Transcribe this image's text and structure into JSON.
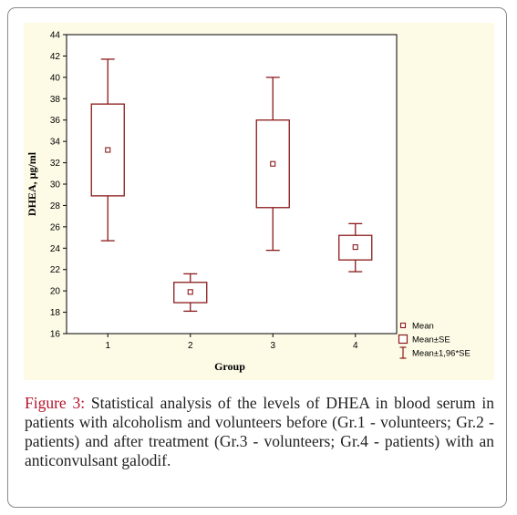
{
  "chart_data": {
    "type": "box",
    "xlabel": "Group",
    "ylabel": "DHEA, μg/ml",
    "ylim": [
      16,
      44
    ],
    "yticks": [
      16,
      18,
      20,
      22,
      24,
      26,
      28,
      30,
      32,
      34,
      36,
      38,
      40,
      42,
      44
    ],
    "categories": [
      "1",
      "2",
      "3",
      "4"
    ],
    "groups": [
      {
        "category": "1",
        "mean": 33.2,
        "se_low": 28.9,
        "se_high": 37.5,
        "ci_low": 24.7,
        "ci_high": 41.7
      },
      {
        "category": "2",
        "mean": 19.9,
        "se_low": 18.9,
        "se_high": 20.8,
        "ci_low": 18.1,
        "ci_high": 21.6
      },
      {
        "category": "3",
        "mean": 31.9,
        "se_low": 27.8,
        "se_high": 36.0,
        "ci_low": 23.8,
        "ci_high": 40.0
      },
      {
        "category": "4",
        "mean": 24.1,
        "se_low": 22.9,
        "se_high": 25.2,
        "ci_low": 21.8,
        "ci_high": 26.3
      }
    ],
    "legend": [
      "Mean",
      "Mean±SE",
      "Mean±1,96*SE"
    ],
    "legend_position": "bottom-right",
    "grid": false,
    "background_color": "#fdfae6",
    "series_color": "#8b1a1a"
  },
  "caption": {
    "label": "Figure 3:",
    "text": " Statistical analysis of the levels of DHEA in blood serum in patients with alcoholism and volunteers before (Gr.1 - volunteers; Gr.2 - patients) and after treatment (Gr.3 - volunteers; Gr.4 - patients) with an anticonvulsant galodif."
  }
}
